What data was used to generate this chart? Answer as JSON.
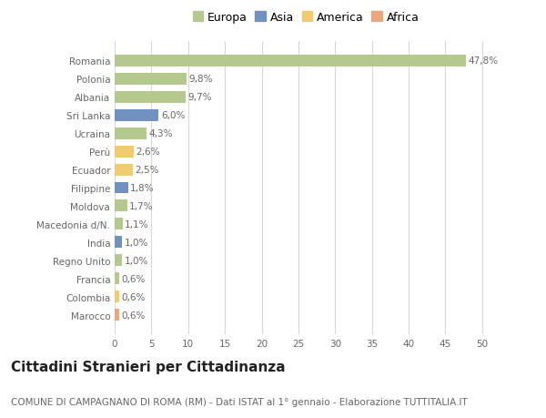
{
  "countries": [
    "Romania",
    "Polonia",
    "Albania",
    "Sri Lanka",
    "Ucraina",
    "Perù",
    "Ecuador",
    "Filippine",
    "Moldova",
    "Macedonia d/N.",
    "India",
    "Regno Unito",
    "Francia",
    "Colombia",
    "Marocco"
  ],
  "values": [
    47.8,
    9.8,
    9.7,
    6.0,
    4.3,
    2.6,
    2.5,
    1.8,
    1.7,
    1.1,
    1.0,
    1.0,
    0.6,
    0.6,
    0.6
  ],
  "labels": [
    "47,8%",
    "9,8%",
    "9,7%",
    "6,0%",
    "4,3%",
    "2,6%",
    "2,5%",
    "1,8%",
    "1,7%",
    "1,1%",
    "1,0%",
    "1,0%",
    "0,6%",
    "0,6%",
    "0,6%"
  ],
  "continents": [
    "Europa",
    "Europa",
    "Europa",
    "Asia",
    "Europa",
    "America",
    "America",
    "Asia",
    "Europa",
    "Europa",
    "Asia",
    "Europa",
    "Europa",
    "America",
    "Africa"
  ],
  "colors": {
    "Europa": "#b5c98e",
    "Asia": "#7191c0",
    "America": "#f0cb72",
    "Africa": "#e8a87c"
  },
  "legend_order": [
    "Europa",
    "Asia",
    "America",
    "Africa"
  ],
  "title": "Cittadini Stranieri per Cittadinanza",
  "subtitle": "COMUNE DI CAMPAGNANO DI ROMA (RM) - Dati ISTAT al 1° gennaio - Elaborazione TUTTITALIA.IT",
  "xlim": [
    0,
    52
  ],
  "xticks": [
    0,
    5,
    10,
    15,
    20,
    25,
    30,
    35,
    40,
    45,
    50
  ],
  "background_color": "#ffffff",
  "grid_color": "#d8d8d8",
  "bar_height": 0.65,
  "label_fontsize": 7.5,
  "tick_fontsize": 7.5,
  "title_fontsize": 11,
  "subtitle_fontsize": 7.5,
  "legend_fontsize": 9
}
